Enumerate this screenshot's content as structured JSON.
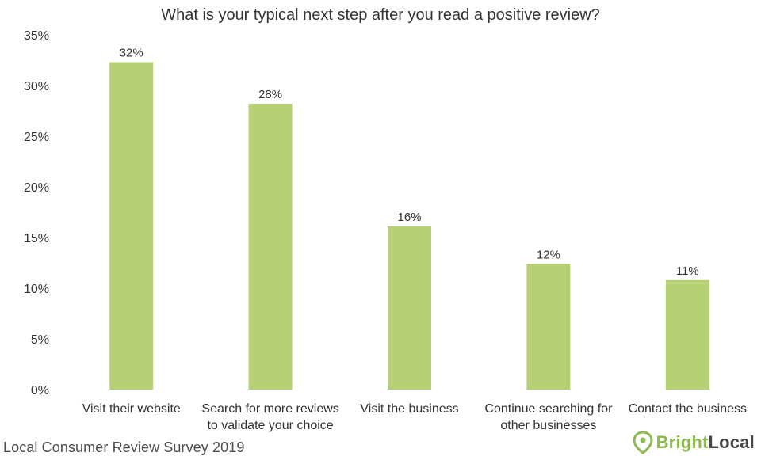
{
  "chart_data": {
    "type": "bar",
    "title": "What is your typical next step after you read a positive review?",
    "xlabel": "",
    "ylabel": "",
    "ylim": [
      0,
      35
    ],
    "yticks": [
      "0%",
      "5%",
      "10%",
      "15%",
      "20%",
      "25%",
      "30%",
      "35%"
    ],
    "ytick_values": [
      0,
      5,
      10,
      15,
      20,
      25,
      30,
      35
    ],
    "categories": [
      [
        "Visit their website"
      ],
      [
        "Search for more reviews",
        "to validate your choice"
      ],
      [
        "Visit the business"
      ],
      [
        "Continue searching for",
        "other businesses"
      ],
      [
        "Contact the business"
      ]
    ],
    "values": [
      32.3,
      28.2,
      16.1,
      12.4,
      10.8
    ],
    "data_labels": [
      "32%",
      "28%",
      "16%",
      "12%",
      "11%"
    ],
    "bar_color": "#b5d173",
    "grid": false
  },
  "footer": {
    "source": "Local Consumer Review Survey 2019",
    "brand_part1": "Bright",
    "brand_part2": "Local"
  },
  "colors": {
    "brand_green": "#8cb950",
    "brand_dark": "#44464a",
    "text": "#333333"
  }
}
